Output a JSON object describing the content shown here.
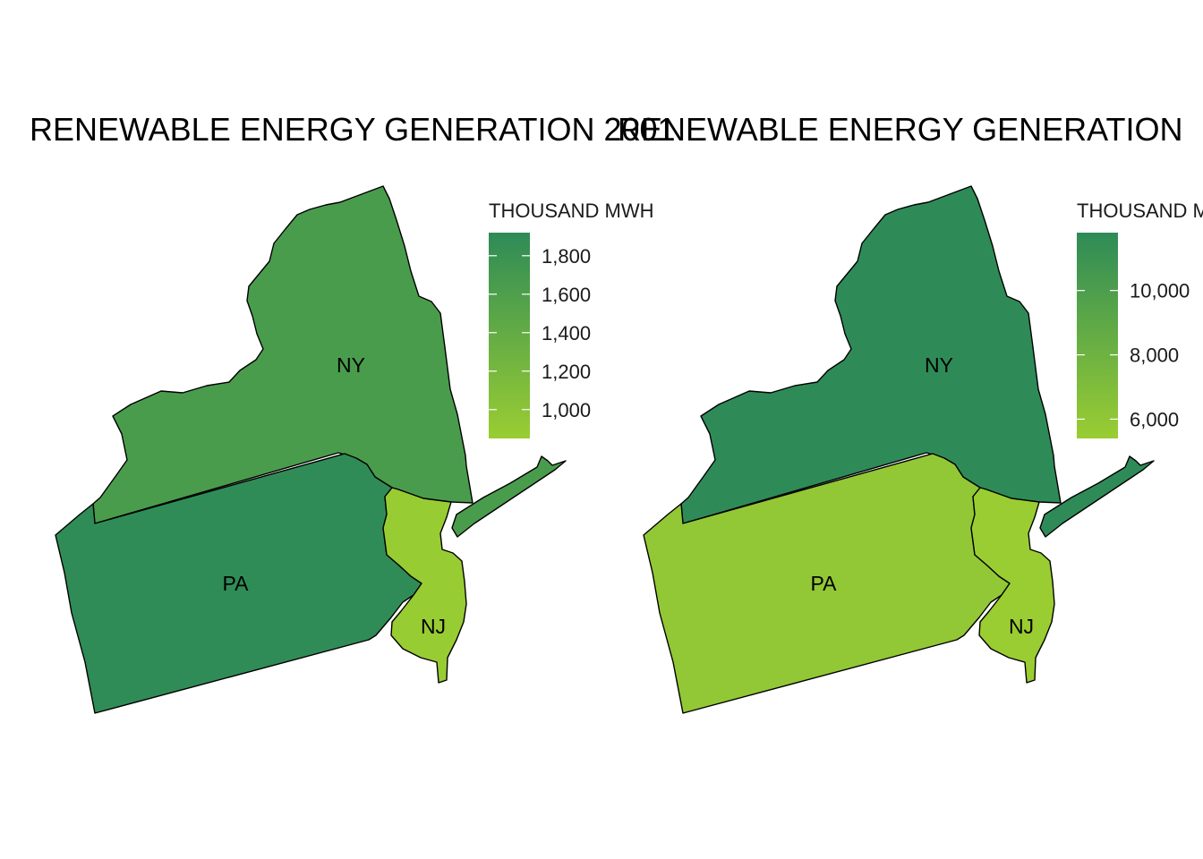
{
  "colors": {
    "low": "#9acd32",
    "high": "#2e8b57",
    "border": "#000000"
  },
  "panels": [
    {
      "title": "RENEWABLE ENERGY GENERATION 2001",
      "legend": {
        "title": "THOUSAND MWH",
        "ticks": [
          {
            "value": 1800,
            "label": "1,800"
          },
          {
            "value": 1600,
            "label": "1,600"
          },
          {
            "value": 1400,
            "label": "1,400"
          },
          {
            "value": 1200,
            "label": "1,200"
          },
          {
            "value": 1000,
            "label": "1,000"
          }
        ],
        "range": [
          850,
          1920
        ]
      },
      "states": [
        {
          "abbr": "NY",
          "value": 1640
        },
        {
          "abbr": "PA",
          "value": 1900
        },
        {
          "abbr": "NJ",
          "value": 870
        }
      ]
    },
    {
      "title": "RENEWABLE ENERGY GENERATION",
      "legend": {
        "title": "THOUSAND MWH",
        "ticks": [
          {
            "value": 10000,
            "label": "10,000"
          },
          {
            "value": 8000,
            "label": "8,000"
          },
          {
            "value": 6000,
            "label": "6,000"
          }
        ],
        "range": [
          5400,
          11800
        ]
      },
      "states": [
        {
          "abbr": "NY",
          "value": 11800
        },
        {
          "abbr": "PA",
          "value": 5850
        },
        {
          "abbr": "NJ",
          "value": 5400
        }
      ]
    }
  ]
}
